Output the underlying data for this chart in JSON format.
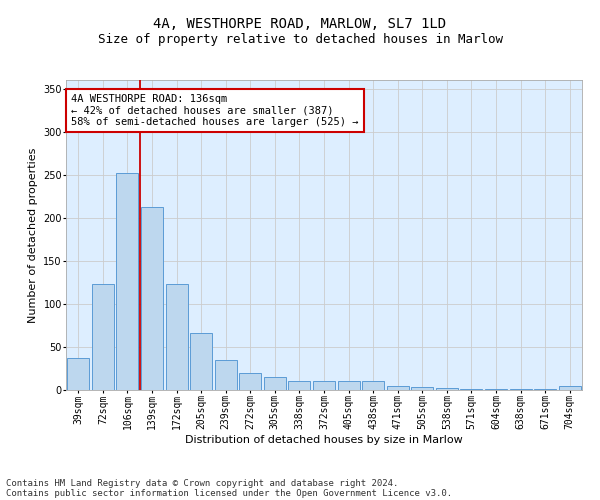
{
  "title": "4A, WESTHORPE ROAD, MARLOW, SL7 1LD",
  "subtitle": "Size of property relative to detached houses in Marlow",
  "xlabel": "Distribution of detached houses by size in Marlow",
  "ylabel": "Number of detached properties",
  "bar_labels": [
    "39sqm",
    "72sqm",
    "106sqm",
    "139sqm",
    "172sqm",
    "205sqm",
    "239sqm",
    "272sqm",
    "305sqm",
    "338sqm",
    "372sqm",
    "405sqm",
    "438sqm",
    "471sqm",
    "505sqm",
    "538sqm",
    "571sqm",
    "604sqm",
    "638sqm",
    "671sqm",
    "704sqm"
  ],
  "bar_values": [
    37,
    123,
    252,
    212,
    123,
    66,
    35,
    20,
    15,
    11,
    10,
    10,
    10,
    5,
    3,
    2,
    1,
    1,
    1,
    1,
    5
  ],
  "bar_color": "#bdd7ee",
  "bar_edge_color": "#5b9bd5",
  "red_line_x": 2.5,
  "annotation_text": "4A WESTHORPE ROAD: 136sqm\n← 42% of detached houses are smaller (387)\n58% of semi-detached houses are larger (525) →",
  "annotation_box_color": "#ffffff",
  "annotation_box_edge": "#cc0000",
  "ylim": [
    0,
    360
  ],
  "yticks": [
    0,
    50,
    100,
    150,
    200,
    250,
    300,
    350
  ],
  "grid_color": "#cccccc",
  "background_color": "#ddeeff",
  "footer_line1": "Contains HM Land Registry data © Crown copyright and database right 2024.",
  "footer_line2": "Contains public sector information licensed under the Open Government Licence v3.0.",
  "title_fontsize": 10,
  "subtitle_fontsize": 9,
  "axis_label_fontsize": 8,
  "tick_fontsize": 7,
  "annotation_fontsize": 7.5,
  "footer_fontsize": 6.5
}
